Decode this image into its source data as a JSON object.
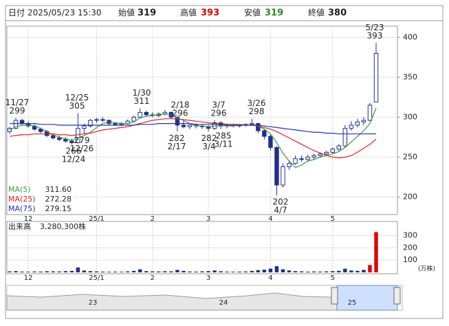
{
  "header": {
    "date_label": "日付",
    "date": "2025/05/23 15:30",
    "open_label": "始値",
    "open": 319,
    "high_label": "高値",
    "high": 393,
    "low_label": "安値",
    "low": 319,
    "close_label": "終値",
    "close": 380
  },
  "chart_data": [
    {
      "type": "candlestick",
      "categories": [
        null,
        null,
        null,
        "12",
        null,
        null,
        null,
        null,
        null,
        null,
        null,
        null,
        null,
        null,
        "25/1",
        null,
        null,
        null,
        null,
        null,
        null,
        null,
        null,
        "2",
        null,
        null,
        null,
        null,
        null,
        null,
        null,
        null,
        "3",
        null,
        null,
        null,
        null,
        null,
        null,
        null,
        null,
        null,
        "4",
        null,
        null,
        null,
        null,
        null,
        null,
        null,
        null,
        null,
        "5",
        null,
        null,
        null,
        null,
        null,
        null,
        null
      ],
      "ohlc": [
        [
          282,
          288,
          279,
          286
        ],
        [
          286,
          299,
          285,
          296
        ],
        [
          296,
          298,
          290,
          292
        ],
        [
          292,
          295,
          287,
          289
        ],
        [
          289,
          291,
          283,
          285
        ],
        [
          285,
          287,
          280,
          282
        ],
        [
          282,
          284,
          275,
          277
        ],
        [
          277,
          280,
          272,
          274
        ],
        [
          274,
          277,
          270,
          272
        ],
        [
          272,
          275,
          268,
          270
        ],
        [
          270,
          273,
          266,
          268
        ],
        [
          268,
          305,
          267,
          286
        ],
        [
          286,
          292,
          279,
          289
        ],
        [
          289,
          298,
          287,
          296
        ],
        [
          296,
          299,
          293,
          297
        ],
        [
          297,
          300,
          294,
          296
        ],
        [
          296,
          297,
          290,
          292
        ],
        [
          292,
          294,
          289,
          291
        ],
        [
          291,
          294,
          289,
          292
        ],
        [
          292,
          297,
          291,
          295
        ],
        [
          295,
          302,
          294,
          300
        ],
        [
          300,
          311,
          299,
          306
        ],
        [
          306,
          308,
          301,
          303
        ],
        [
          303,
          306,
          300,
          302
        ],
        [
          302,
          306,
          300,
          304
        ],
        [
          304,
          309,
          302,
          306
        ],
        [
          306,
          307,
          298,
          300
        ],
        [
          300,
          301,
          282,
          290
        ],
        [
          290,
          296,
          286,
          288
        ],
        [
          288,
          291,
          285,
          290
        ],
        [
          290,
          292,
          286,
          289
        ],
        [
          289,
          291,
          285,
          288
        ],
        [
          288,
          290,
          282,
          286
        ],
        [
          286,
          296,
          284,
          293
        ],
        [
          293,
          295,
          285,
          289
        ],
        [
          289,
          292,
          286,
          290
        ],
        [
          290,
          292,
          287,
          289
        ],
        [
          289,
          291,
          287,
          290
        ],
        [
          290,
          292,
          288,
          291
        ],
        [
          291,
          298,
          289,
          292
        ],
        [
          292,
          293,
          280,
          283
        ],
        [
          283,
          285,
          272,
          276
        ],
        [
          276,
          278,
          258,
          262
        ],
        [
          262,
          264,
          202,
          215
        ],
        [
          215,
          242,
          212,
          238
        ],
        [
          238,
          246,
          234,
          242
        ],
        [
          242,
          252,
          240,
          248
        ],
        [
          248,
          252,
          244,
          247
        ],
        [
          247,
          253,
          245,
          250
        ],
        [
          250,
          254,
          247,
          252
        ],
        [
          252,
          256,
          249,
          254
        ],
        [
          254,
          258,
          252,
          256
        ],
        [
          256,
          262,
          254,
          260
        ],
        [
          260,
          266,
          258,
          264
        ],
        [
          264,
          290,
          262,
          286
        ],
        [
          286,
          295,
          283,
          290
        ],
        [
          290,
          298,
          287,
          294
        ],
        [
          294,
          300,
          290,
          296
        ],
        [
          296,
          318,
          295,
          315
        ],
        [
          319,
          393,
          319,
          380
        ]
      ],
      "up_color": "#ffffff",
      "down_color": "#1f2f8f",
      "edge_color": "#1f2f8f",
      "series": [
        {
          "name": "MA(5)",
          "color": "#3a9a3a",
          "values": [
            284,
            288,
            290,
            290,
            289,
            286,
            282,
            278,
            275,
            273,
            271,
            274,
            277,
            281,
            287,
            292,
            294,
            293,
            292,
            292,
            294,
            299,
            301,
            302,
            303,
            304,
            303,
            299,
            296,
            292,
            289,
            289,
            288,
            289,
            289,
            289,
            289,
            290,
            290,
            290,
            289,
            285,
            279,
            268,
            255,
            245,
            237,
            240,
            245,
            247,
            250,
            252,
            254,
            257,
            262,
            269,
            276,
            283,
            292,
            311.6
          ],
          "last": {
            "value": 311.6,
            "label": "311.60"
          }
        },
        {
          "name": "MA(25)",
          "color": "#e02020",
          "values": [
            276,
            277,
            278,
            278,
            279,
            279,
            279,
            279,
            278,
            278,
            277,
            278,
            279,
            280,
            282,
            284,
            285,
            286,
            287,
            288,
            290,
            292,
            294,
            296,
            297,
            298,
            298,
            298,
            297,
            296,
            295,
            294,
            293,
            292,
            292,
            291,
            291,
            291,
            290,
            290,
            289,
            287,
            285,
            282,
            278,
            274,
            270,
            266,
            262,
            258,
            255,
            252,
            250,
            249,
            250,
            252,
            256,
            261,
            266,
            272.28
          ],
          "last": {
            "value": 272.28,
            "label": "272.28"
          }
        },
        {
          "name": "MA(75)",
          "color": "#2030c0",
          "values": [
            292,
            292,
            292,
            292,
            292,
            291,
            291,
            291,
            290,
            290,
            290,
            290,
            290,
            290,
            290,
            290,
            290,
            290,
            290,
            290,
            290,
            291,
            291,
            291,
            292,
            292,
            292,
            292,
            292,
            292,
            291,
            291,
            291,
            291,
            291,
            290,
            290,
            290,
            290,
            290,
            290,
            289,
            288,
            287,
            286,
            285,
            284,
            283,
            282,
            281,
            281,
            280,
            280,
            279,
            279,
            279,
            279,
            279,
            279,
            279.15
          ],
          "last": {
            "value": 279.15,
            "label": "279.15"
          }
        }
      ],
      "annotations": [
        {
          "date": "11/27",
          "value": 299
        },
        {
          "date": "12/25",
          "value": 305
        },
        {
          "date": "1/30",
          "value": 311
        },
        {
          "date": "2/18",
          "value": 296
        },
        {
          "date": "3/7",
          "value": 296
        },
        {
          "date": "3/26",
          "value": 298
        },
        {
          "date": "5/23",
          "value": 393
        },
        {
          "date": "12/24",
          "value": 266
        },
        {
          "date": "12/26",
          "value": 279
        },
        {
          "date": "2/17",
          "value": 282
        },
        {
          "date": "3/4",
          "value": 282
        },
        {
          "date": "3/11",
          "value": 285
        },
        {
          "date": "4/7",
          "value": 202
        }
      ],
      "ylim": [
        178,
        414
      ],
      "yticks": [
        200,
        250,
        300,
        350,
        400
      ],
      "grid": true
    },
    {
      "type": "bar",
      "title": "出来高",
      "last_label": "3,280,300株",
      "unit": "(万株)",
      "color": "#1f2f8f",
      "values": [
        8,
        10,
        6,
        5,
        7,
        6,
        9,
        8,
        7,
        10,
        12,
        40,
        15,
        10,
        8,
        6,
        5,
        6,
        5,
        8,
        12,
        25,
        10,
        8,
        7,
        9,
        8,
        20,
        12,
        7,
        6,
        8,
        10,
        15,
        9,
        6,
        5,
        6,
        7,
        12,
        18,
        22,
        30,
        50,
        25,
        15,
        10,
        8,
        6,
        7,
        6,
        8,
        10,
        12,
        30,
        15,
        12,
        20,
        60,
        328.03
      ],
      "ylim": [
        0,
        415
      ],
      "yticks": [
        100,
        200,
        300
      ]
    }
  ],
  "navigator": {
    "labels": [
      "23",
      "24",
      "25"
    ]
  }
}
